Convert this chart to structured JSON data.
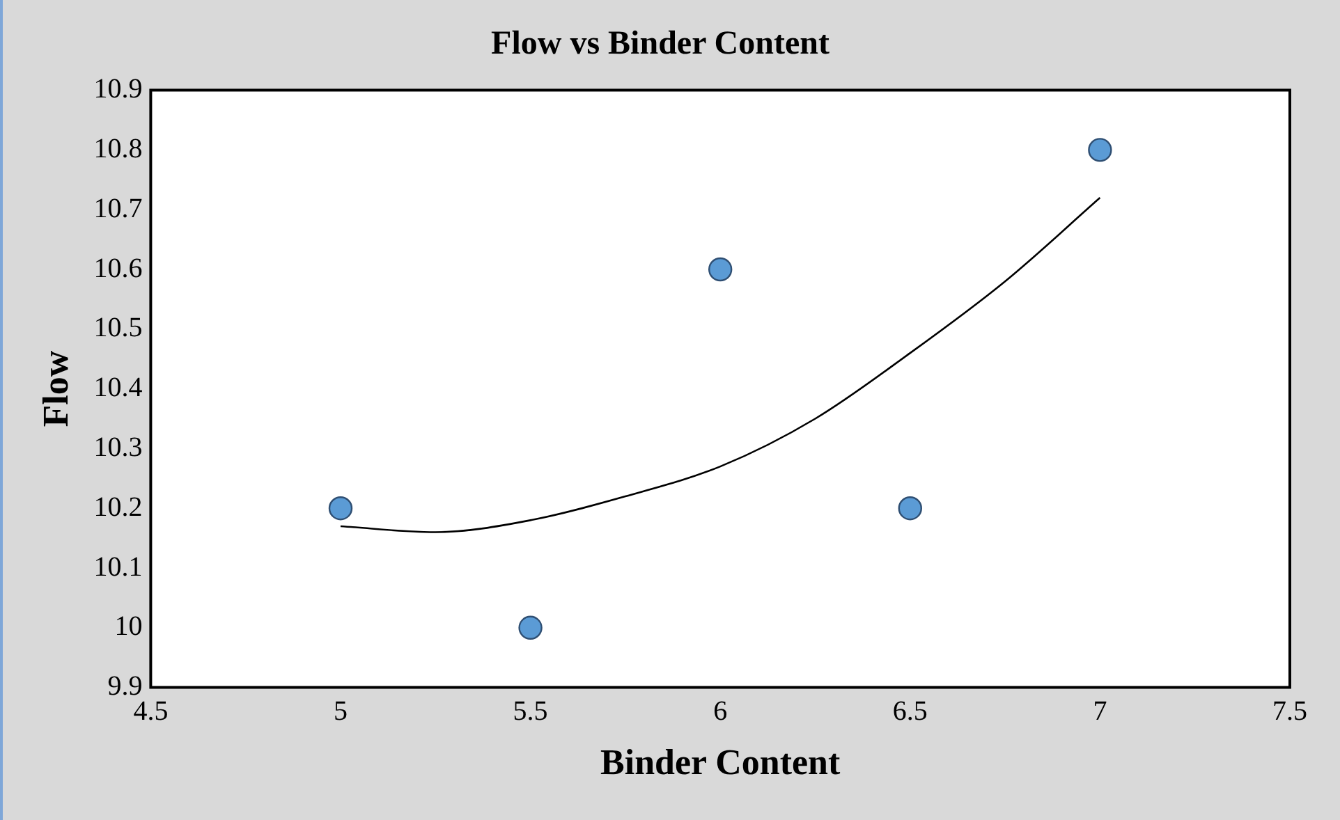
{
  "chart_data": {
    "type": "scatter",
    "title": "Flow vs Binder Content",
    "xlabel": "Binder Content",
    "ylabel": "Flow",
    "series": [
      {
        "marker": "circle",
        "color": "#5b9bd5",
        "x": [
          5,
          5.5,
          6,
          6.5,
          7
        ],
        "values": [
          10.2,
          10,
          10.6,
          10.2,
          10.8
        ]
      },
      {
        "type": "line",
        "marker": "none",
        "color": "#000000",
        "x": [
          5,
          5.25,
          5.5,
          5.75,
          6,
          6.25,
          6.5,
          6.75,
          7
        ],
        "values": [
          10.17,
          10.16,
          10.18,
          10.22,
          10.27,
          10.35,
          10.46,
          10.58,
          10.72
        ]
      }
    ],
    "xlim": [
      4.5,
      7.5
    ],
    "xticks": [
      4.5,
      5,
      5.5,
      6,
      6.5,
      7,
      7.5
    ],
    "ylim": [
      9.9,
      10.9
    ],
    "yticks": [
      9.9,
      10,
      10.1,
      10.2,
      10.3,
      10.4,
      10.5,
      10.6,
      10.7,
      10.8,
      10.9
    ],
    "grid": false,
    "legend": false
  }
}
